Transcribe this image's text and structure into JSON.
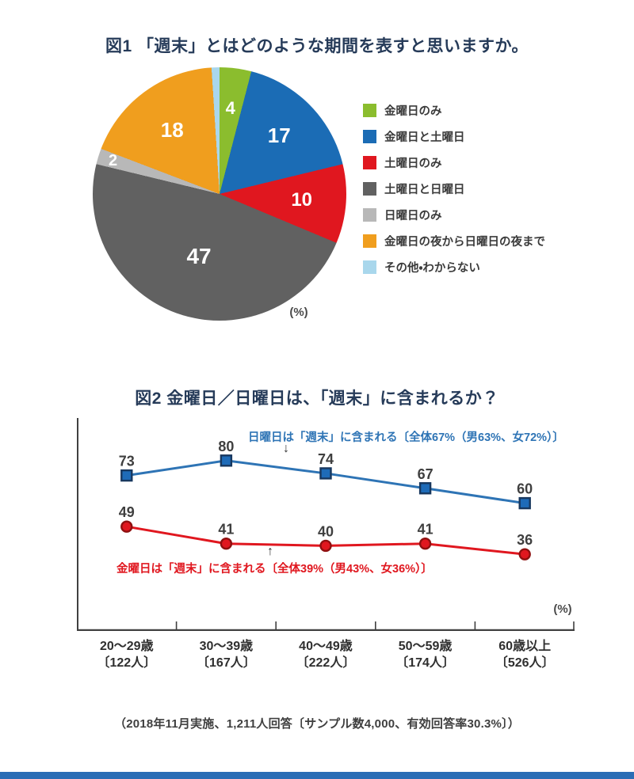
{
  "fig1": {
    "title": "図1 「週末」とはどのような期間を表すと思いますか。",
    "unit_label": "(%)"
  },
  "fig2": {
    "title": "図2 金曜日／日曜日は、「週末」に含まれるか？",
    "unit_label": "(%)",
    "annotations": {
      "sunday": {
        "text": "日曜日は「週末」に含まれる〔全体67%（男63%、女72%）〕",
        "arrow": "↓",
        "color": "#2e74b5"
      },
      "friday": {
        "text": "金曜日は「週末」に含まれる〔全体39%（男43%、女36%）〕",
        "arrow": "↑",
        "color": "#e0171f"
      }
    }
  },
  "footnote": "（2018年11月実施、1,211人回答〔サンプル数4,000、有効回答率30.3%〕）",
  "colors": {
    "title": "#263b59",
    "axis": "#404040",
    "point_label": "#3f3f3f",
    "bottom_bar": "#2a6db5"
  },
  "chart_data": [
    {
      "type": "pie",
      "title": "図1 「週末」とはどのような期間を表すと思いますか。",
      "unit": "%",
      "start_angle_deg": 0,
      "direction": "clockwise",
      "legend_position": "right",
      "slices": [
        {
          "label": "金曜日のみ",
          "value": 4,
          "color": "#8bbd2e",
          "value_shown": true
        },
        {
          "label": "金曜日と土曜日",
          "value": 17,
          "color": "#1b6cb5",
          "value_shown": true
        },
        {
          "label": "土曜日のみ",
          "value": 10,
          "color": "#e0171f",
          "value_shown": true
        },
        {
          "label": "土曜日と日曜日",
          "value": 47,
          "color": "#616161",
          "value_shown": true
        },
        {
          "label": "日曜日のみ",
          "value": 2,
          "color": "#b8b8b8",
          "value_shown": true
        },
        {
          "label": "金曜日の夜から日曜日の夜まで",
          "value": 18,
          "color": "#f09e1e",
          "value_shown": true
        },
        {
          "label": "その他・わからない",
          "value": 1,
          "color": "#a9d7ec",
          "value_shown": false
        }
      ]
    },
    {
      "type": "line",
      "title": "図2 金曜日／日曜日は、「週末」に含まれるか？",
      "categories": [
        "20～29歳",
        "30～39歳",
        "40～49歳",
        "50～59歳",
        "60歳以上"
      ],
      "category_counts": [
        "〔122人〕",
        "〔167人〕",
        "〔222人〕",
        "〔174人〕",
        "〔526人〕"
      ],
      "ylim": [
        0,
        100
      ],
      "grid": false,
      "unit": "%",
      "series": [
        {
          "name": "日曜日は「週末」に含まれる〔全体67%（男63%、女72%）〕",
          "values": [
            73,
            80,
            74,
            67,
            60
          ],
          "color": "#2e74b5",
          "marker": "square",
          "marker_fill": "#1e6bb8",
          "marker_stroke": "#17375e"
        },
        {
          "name": "金曜日は「週末」に含まれる〔全体39%（男43%、女36%）〕",
          "values": [
            49,
            41,
            40,
            41,
            36
          ],
          "color": "#e0171f",
          "marker": "circle",
          "marker_fill": "#e0171f",
          "marker_stroke": "#8f1010"
        }
      ]
    }
  ]
}
